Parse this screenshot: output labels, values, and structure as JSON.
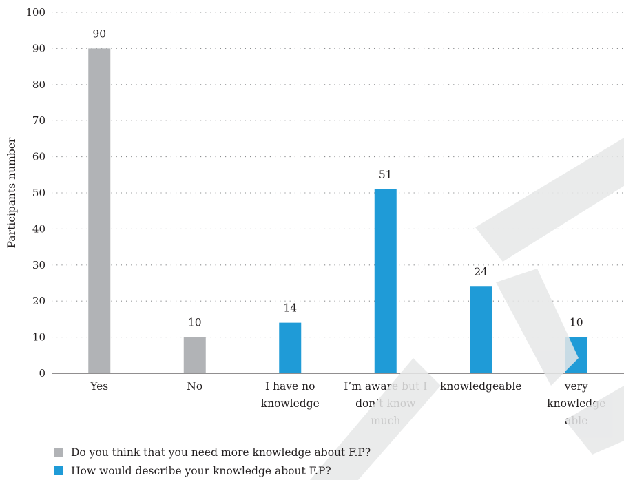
{
  "chart_data": {
    "type": "bar",
    "ylabel": "Participants number",
    "xlabel": "",
    "ylim": [
      0,
      100
    ],
    "yticks": [
      0,
      10,
      20,
      30,
      40,
      50,
      60,
      70,
      80,
      90,
      100
    ],
    "grid": true,
    "legend_position": "bottom-left",
    "categories": [
      [
        "Yes"
      ],
      [
        "No"
      ],
      [
        "I have no",
        "knowledge"
      ],
      [
        "I’m aware but I",
        "don’t know",
        "much"
      ],
      [
        "knowledgeable"
      ],
      [
        "very",
        "knowledge",
        "able"
      ]
    ],
    "values": [
      90,
      10,
      14,
      51,
      24,
      10
    ],
    "series_index": [
      0,
      0,
      1,
      1,
      1,
      1
    ],
    "series": [
      {
        "name": "Do you think that you need more knowledge about F.P?",
        "color": "#b1b3b6"
      },
      {
        "name": "How would describe your knowledge about F.P?",
        "color": "#1f9bd7"
      }
    ]
  },
  "watermark": {
    "color": "#e6e7e8"
  }
}
